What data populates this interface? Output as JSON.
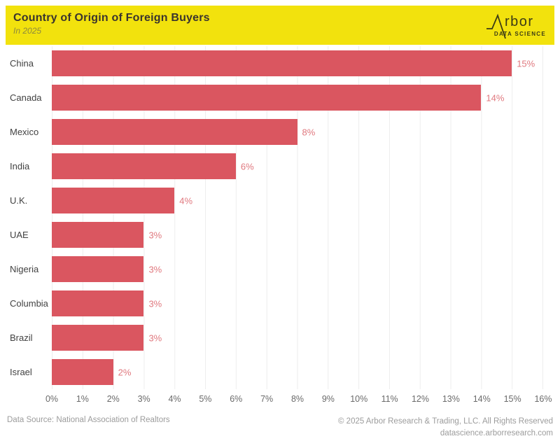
{
  "header": {
    "title": "Country of Origin of Foreign Buyers",
    "subtitle": "In 2025",
    "logo": {
      "brand": "Arbor",
      "brand_visible_letters": "rbor",
      "tagline": "DATA SCIENCE"
    },
    "banner_color": "#F2E20D"
  },
  "chart_data": {
    "type": "bar",
    "orientation": "horizontal",
    "title": "Country of Origin of Foreign Buyers",
    "subtitle": "In 2025",
    "categories": [
      "China",
      "Canada",
      "Mexico",
      "India",
      "U.K.",
      "UAE",
      "Nigeria",
      "Columbia",
      "Brazil",
      "Israel"
    ],
    "values": [
      15,
      14,
      8,
      6,
      4,
      3,
      3,
      3,
      3,
      2
    ],
    "value_labels": [
      "15%",
      "14%",
      "8%",
      "6%",
      "4%",
      "3%",
      "3%",
      "3%",
      "3%",
      "2%"
    ],
    "x_axis_ticks": [
      "0%",
      "1%",
      "2%",
      "3%",
      "4%",
      "5%",
      "6%",
      "7%",
      "8%",
      "9%",
      "10%",
      "11%",
      "12%",
      "13%",
      "14%",
      "15%",
      "16%"
    ],
    "xlim": [
      0,
      16
    ],
    "grid": true,
    "legend": false,
    "bar_color": "#DA5660",
    "value_label_color": "#E0797F",
    "gridline_color": "#EDEDED"
  },
  "footer": {
    "source": "Data Source: National Association of Realtors",
    "copyright": "© 2025 Arbor Research & Trading, LLC. All Rights Reserved",
    "website": "datascience.arborresearch.com"
  }
}
